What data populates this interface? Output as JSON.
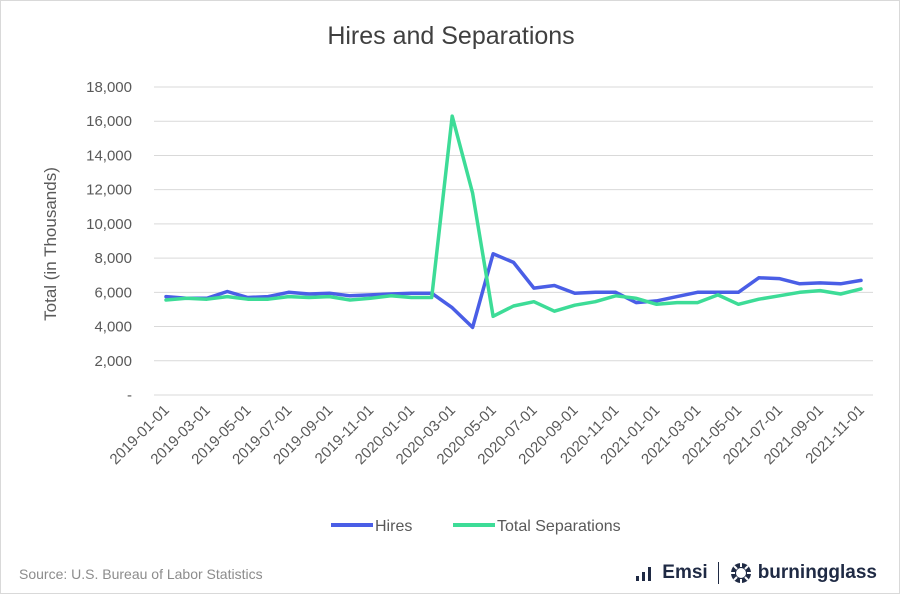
{
  "chart_data": {
    "type": "line",
    "title": "Hires and Separations",
    "ylabel": "Total (in Thousands)",
    "xlabel": "",
    "ylim": [
      0,
      18000
    ],
    "yticks": [
      0,
      2000,
      4000,
      6000,
      8000,
      10000,
      12000,
      14000,
      16000,
      18000
    ],
    "ytick_labels": [
      "-",
      "2,000",
      "4,000",
      "6,000",
      "8,000",
      "10,000",
      "12,000",
      "14,000",
      "16,000",
      "18,000"
    ],
    "x": [
      "2019-01-01",
      "2019-02-01",
      "2019-03-01",
      "2019-04-01",
      "2019-05-01",
      "2019-06-01",
      "2019-07-01",
      "2019-08-01",
      "2019-09-01",
      "2019-10-01",
      "2019-11-01",
      "2019-12-01",
      "2020-01-01",
      "2020-02-01",
      "2020-03-01",
      "2020-04-01",
      "2020-05-01",
      "2020-06-01",
      "2020-07-01",
      "2020-08-01",
      "2020-09-01",
      "2020-10-01",
      "2020-11-01",
      "2020-12-01",
      "2021-01-01",
      "2021-02-01",
      "2021-03-01",
      "2021-04-01",
      "2021-05-01",
      "2021-06-01",
      "2021-07-01",
      "2021-08-01",
      "2021-09-01",
      "2021-10-01",
      "2021-11-01"
    ],
    "xtick_labels": [
      "2019-01-01",
      "2019-03-01",
      "2019-05-01",
      "2019-07-01",
      "2019-09-01",
      "2019-11-01",
      "2020-01-01",
      "2020-03-01",
      "2020-05-01",
      "2020-07-01",
      "2020-09-01",
      "2020-11-01",
      "2021-01-01",
      "2021-03-01",
      "2021-05-01",
      "2021-07-01",
      "2021-09-01",
      "2021-11-01"
    ],
    "series": [
      {
        "name": "Hires",
        "color": "#4a5ee6",
        "values": [
          5750,
          5650,
          5650,
          6050,
          5700,
          5750,
          6000,
          5900,
          5950,
          5800,
          5850,
          5900,
          5950,
          5950,
          5100,
          3950,
          8250,
          7750,
          6250,
          6400,
          5950,
          6000,
          6000,
          5400,
          5500,
          5750,
          6000,
          6000,
          6000,
          6850,
          6800,
          6500,
          6550,
          6500,
          6700
        ]
      },
      {
        "name": "Total Separations",
        "color": "#3ddc97",
        "values": [
          5550,
          5650,
          5600,
          5750,
          5600,
          5600,
          5750,
          5700,
          5750,
          5550,
          5650,
          5800,
          5700,
          5700,
          16300,
          11800,
          4600,
          5200,
          5450,
          4900,
          5250,
          5450,
          5800,
          5650,
          5300,
          5400,
          5400,
          5850,
          5300,
          5600,
          5800,
          6000,
          6100,
          5900,
          6200
        ]
      }
    ],
    "legend_position": "bottom",
    "grid": true
  },
  "footer": {
    "source": "Source:  U.S. Bureau of Labor Statistics",
    "brand1": "Emsi",
    "brand2": "burningglass",
    "brand1_icon": "bars-icon",
    "brand2_icon": "gear-icon"
  }
}
